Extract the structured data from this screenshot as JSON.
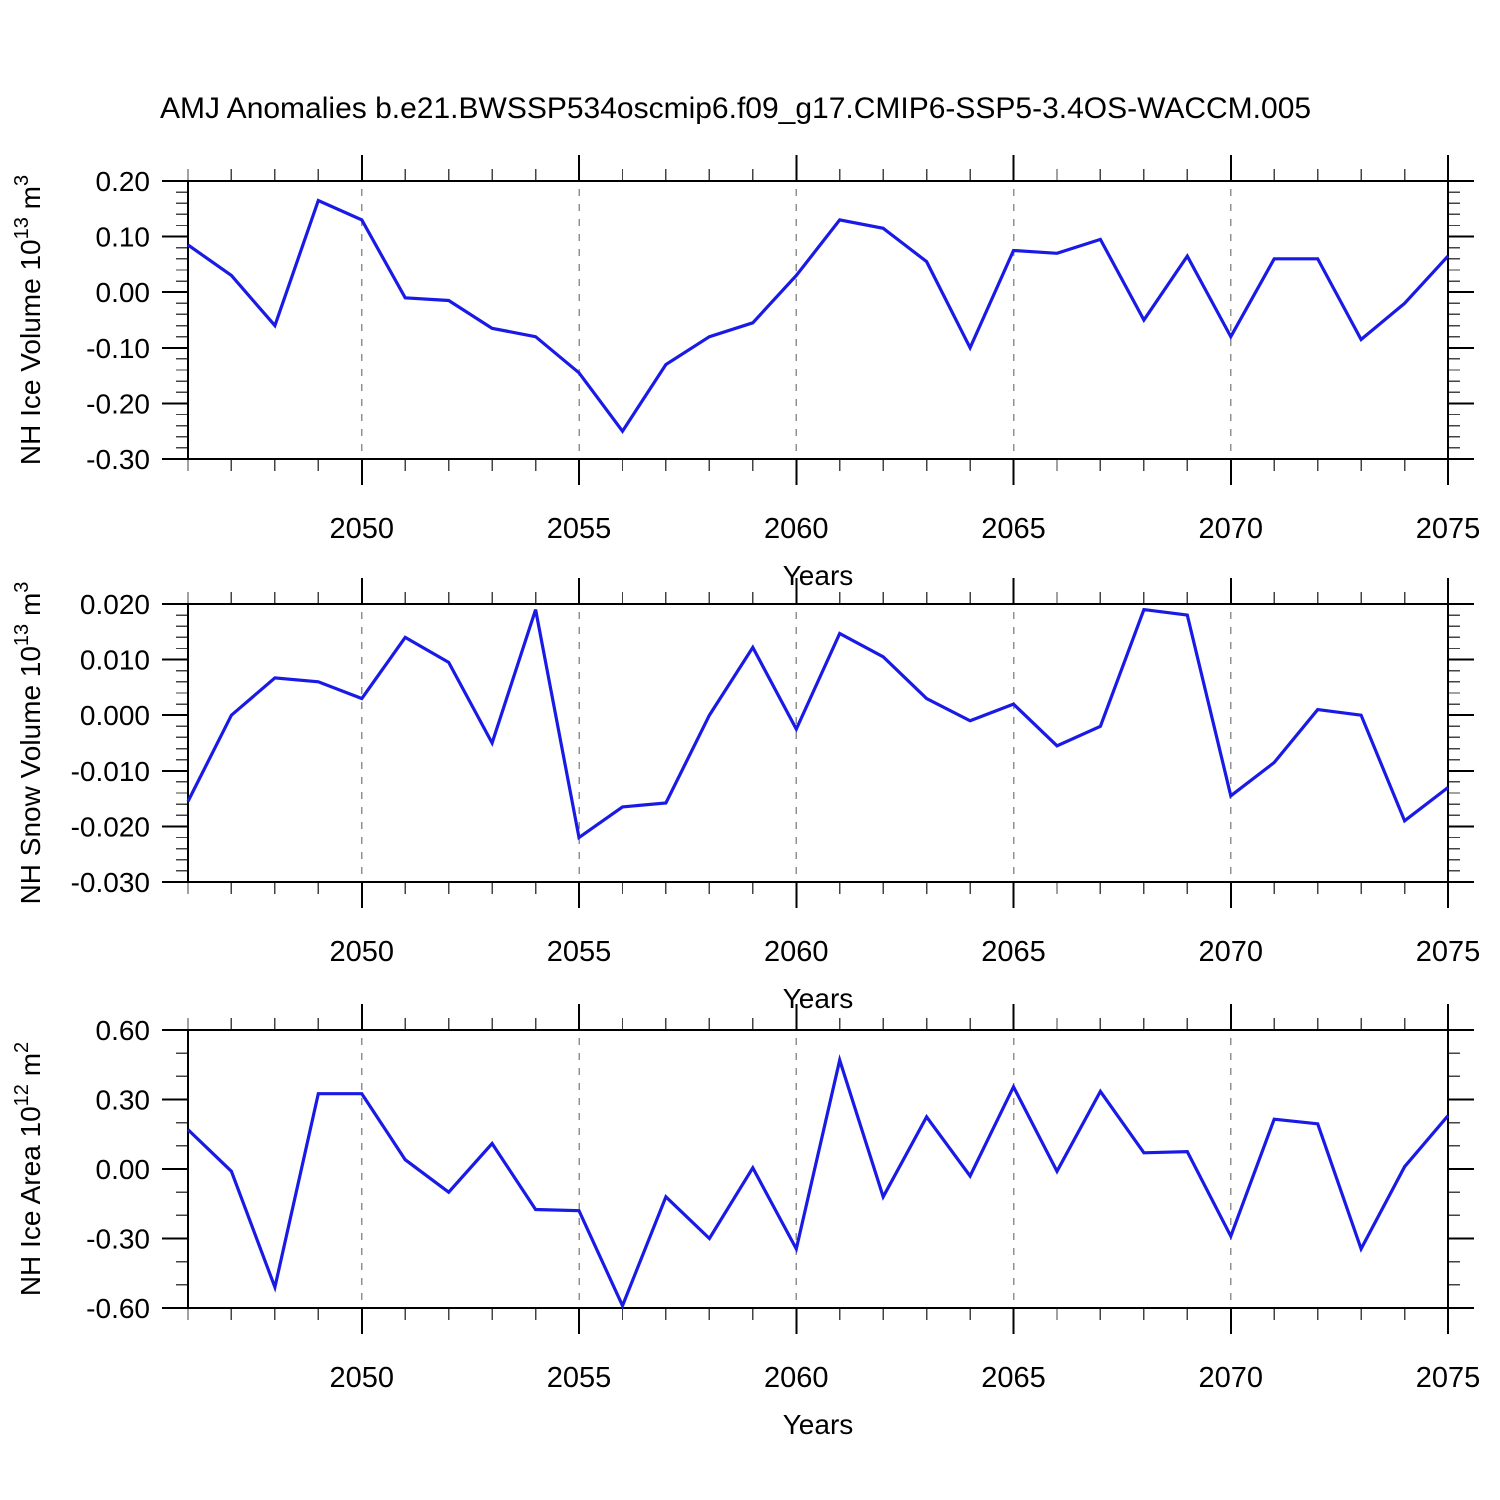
{
  "title": "AMJ Anomalies b.e21.BWSSP534oscmip6.f09_g17.CMIP6-SSP5-3.4OS-WACCM.005",
  "colors": {
    "line": "#1a1ae6",
    "frame": "#000000",
    "major_tick": "#000000",
    "minor_tick": "#444444",
    "gridline": "#909090",
    "background": "#ffffff"
  },
  "x_axis": {
    "label": "Years",
    "start_year": 2046,
    "end_year": 2075,
    "major_tick_years": [
      2050,
      2055,
      2060,
      2065,
      2070,
      2075
    ],
    "major_tick_labels": [
      "2050",
      "2055",
      "2060",
      "2065",
      "2070",
      "2075"
    ],
    "gridline_years": [
      2050,
      2055,
      2060,
      2065,
      2070
    ]
  },
  "chart_data": [
    {
      "type": "line",
      "name": "nh-ice-volume",
      "ylabel": {
        "prefix": "NH Ice Volume 10",
        "exp": "13",
        "mid": " m",
        "exp2": "3",
        "plain": "NH Ice Volume 10^13 m^3"
      },
      "xlabel": "Years",
      "ylim": [
        -0.3,
        0.2
      ],
      "ytick_values": [
        0.2,
        0.1,
        0.0,
        -0.1,
        -0.2,
        -0.3
      ],
      "ytick_labels": [
        "0.20",
        "0.10",
        "0.00",
        "-0.10",
        "-0.20",
        "-0.30"
      ],
      "yminor_step": 0.02,
      "grid": "vertical-dashed",
      "legend": "none",
      "x": [
        2046,
        2047,
        2048,
        2049,
        2050,
        2051,
        2052,
        2053,
        2054,
        2055,
        2056,
        2057,
        2058,
        2059,
        2060,
        2061,
        2062,
        2063,
        2064,
        2065,
        2066,
        2067,
        2068,
        2069,
        2070,
        2071,
        2072,
        2073,
        2074,
        2075
      ],
      "values": [
        0.085,
        0.03,
        -0.06,
        0.165,
        0.13,
        -0.01,
        -0.015,
        -0.065,
        -0.08,
        -0.145,
        -0.25,
        -0.13,
        -0.08,
        -0.055,
        0.03,
        0.13,
        0.115,
        0.055,
        -0.1,
        0.075,
        0.07,
        0.095,
        -0.05,
        0.065,
        -0.08,
        0.06,
        0.06,
        -0.085,
        -0.02,
        0.065
      ]
    },
    {
      "type": "line",
      "name": "nh-snow-volume",
      "ylabel": {
        "prefix": "NH Snow Volume 10",
        "exp": "13",
        "mid": " m",
        "exp2": "3",
        "plain": "NH Snow Volume 10^13 m^3"
      },
      "xlabel": "Years",
      "ylim": [
        -0.03,
        0.02
      ],
      "ytick_values": [
        0.02,
        0.01,
        0.0,
        -0.01,
        -0.02,
        -0.03
      ],
      "ytick_labels": [
        "0.020",
        "0.010",
        "0.000",
        "-0.010",
        "-0.020",
        "-0.030"
      ],
      "yminor_step": 0.002,
      "grid": "vertical-dashed",
      "legend": "none",
      "x": [
        2046,
        2047,
        2048,
        2049,
        2050,
        2051,
        2052,
        2053,
        2054,
        2055,
        2056,
        2057,
        2058,
        2059,
        2060,
        2061,
        2062,
        2063,
        2064,
        2065,
        2066,
        2067,
        2068,
        2069,
        2070,
        2071,
        2072,
        2073,
        2074,
        2075
      ],
      "values": [
        -0.0155,
        0.0,
        0.0067,
        0.006,
        0.003,
        0.014,
        0.0095,
        -0.005,
        0.019,
        -0.022,
        -0.0165,
        -0.0158,
        0.0,
        0.0122,
        -0.0025,
        0.0147,
        0.0105,
        0.003,
        -0.001,
        0.002,
        -0.0055,
        -0.002,
        0.019,
        0.018,
        -0.0145,
        -0.0085,
        0.001,
        0.0,
        -0.019,
        -0.013
      ]
    },
    {
      "type": "line",
      "name": "nh-ice-area",
      "ylabel": {
        "prefix": "NH Ice Area 10",
        "exp": "12",
        "mid": " m",
        "exp2": "2",
        "plain": "NH Ice Area 10^12 m^2"
      },
      "xlabel": "Years",
      "ylim": [
        -0.6,
        0.6
      ],
      "ytick_values": [
        0.6,
        0.3,
        0.0,
        -0.3,
        -0.6
      ],
      "ytick_labels": [
        "0.60",
        "0.30",
        "0.00",
        "-0.30",
        "-0.60"
      ],
      "yminor_step": 0.1,
      "grid": "vertical-dashed",
      "legend": "none",
      "x": [
        2046,
        2047,
        2048,
        2049,
        2050,
        2051,
        2052,
        2053,
        2054,
        2055,
        2056,
        2057,
        2058,
        2059,
        2060,
        2061,
        2062,
        2063,
        2064,
        2065,
        2066,
        2067,
        2068,
        2069,
        2070,
        2071,
        2072,
        2073,
        2074,
        2075
      ],
      "values": [
        0.17,
        -0.01,
        -0.51,
        0.325,
        0.325,
        0.04,
        -0.1,
        0.11,
        -0.175,
        -0.18,
        -0.59,
        -0.12,
        -0.3,
        0.005,
        -0.345,
        0.47,
        -0.12,
        0.225,
        -0.03,
        0.355,
        -0.01,
        0.335,
        0.07,
        0.075,
        -0.29,
        0.215,
        0.195,
        -0.345,
        0.01,
        0.23
      ]
    }
  ]
}
